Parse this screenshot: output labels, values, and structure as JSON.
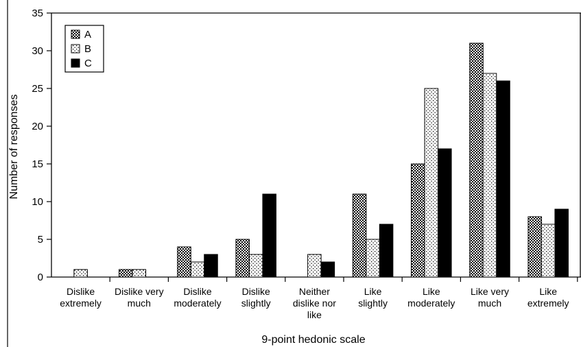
{
  "chart_data": {
    "type": "bar",
    "title": "",
    "xlabel": "9-point hedonic scale",
    "ylabel": "Number of responses",
    "ylim": [
      0,
      35
    ],
    "yticks": [
      0,
      5,
      10,
      15,
      20,
      25,
      30,
      35
    ],
    "grid": false,
    "legend_position": "top-left",
    "categories": [
      [
        "Dislike",
        "extremely"
      ],
      [
        "Dislike very",
        "much"
      ],
      [
        "Dislike",
        "moderately"
      ],
      [
        "Dislike",
        "slightly"
      ],
      [
        "Neither",
        "dislike nor",
        "like"
      ],
      [
        "Like",
        "slightly"
      ],
      [
        "Like",
        "moderately"
      ],
      [
        "Like very",
        "much"
      ],
      [
        "Like",
        "extremely"
      ]
    ],
    "series": [
      {
        "name": "A",
        "pattern": "dense-dots",
        "values": [
          0,
          1,
          4,
          5,
          0,
          11,
          15,
          31,
          8
        ]
      },
      {
        "name": "B",
        "pattern": "sparse-dots",
        "values": [
          1,
          1,
          2,
          3,
          3,
          5,
          25,
          27,
          7
        ]
      },
      {
        "name": "C",
        "pattern": "solid-black",
        "values": [
          0,
          0,
          3,
          11,
          2,
          7,
          17,
          26,
          9
        ]
      }
    ]
  }
}
